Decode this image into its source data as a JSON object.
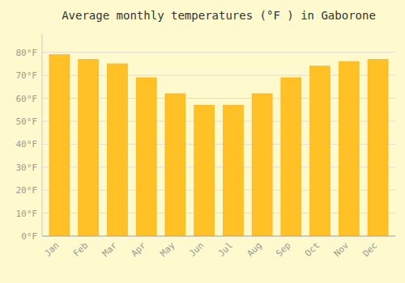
{
  "chart_data": {
    "type": "bar",
    "title": "Average monthly temperatures (°F ) in Gaborone",
    "categories": [
      "Jan",
      "Feb",
      "Mar",
      "Apr",
      "May",
      "Jun",
      "Jul",
      "Aug",
      "Sep",
      "Oct",
      "Nov",
      "Dec"
    ],
    "values": [
      79,
      77,
      75,
      69,
      62,
      57,
      57,
      62,
      69,
      74,
      76,
      77
    ],
    "color": "#FFC125",
    "ylim": [
      0,
      88
    ],
    "yticks": [
      {
        "value": 0,
        "label": "0°F"
      },
      {
        "value": 10,
        "label": "10°F"
      },
      {
        "value": 20,
        "label": "20°F"
      },
      {
        "value": 30,
        "label": "30°F"
      },
      {
        "value": 40,
        "label": "40°F"
      },
      {
        "value": 50,
        "label": "50°F"
      },
      {
        "value": 60,
        "label": "60°F"
      },
      {
        "value": 70,
        "label": "70°F"
      },
      {
        "value": 80,
        "label": "80°F"
      }
    ],
    "grid": true
  }
}
